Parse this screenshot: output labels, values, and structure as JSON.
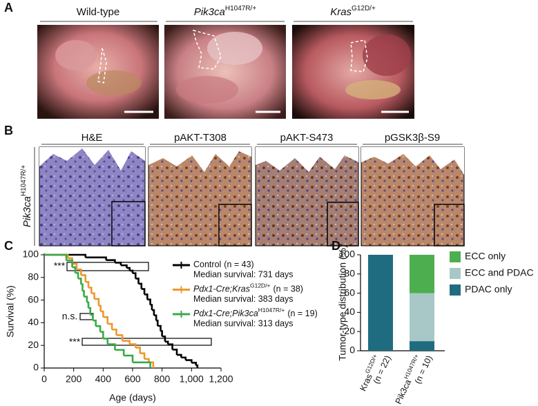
{
  "panel_a": {
    "label": "A",
    "columns": [
      {
        "title": "Wild-type"
      },
      {
        "gene": "Pik3ca",
        "allele": "H1047R/+"
      },
      {
        "gene": "Kras",
        "allele": "G12D/+"
      }
    ]
  },
  "panel_b": {
    "label": "B",
    "row_label": {
      "gene": "Pik3ca",
      "allele": "H1047R/+"
    },
    "columns": [
      "H&E",
      "pAKT-T308",
      "pAKT-S473",
      "pGSK3β-S9"
    ]
  },
  "chart_data": [
    {
      "panel_label": "C",
      "type": "line",
      "step": true,
      "x_label": "Age (days)",
      "y_label": "Survival (%)",
      "xlim": [
        0,
        1200
      ],
      "ylim": [
        0,
        100
      ],
      "xticks": [
        0,
        200,
        400,
        600,
        800,
        {
          "value": 1000,
          "label": "1,000"
        },
        {
          "value": 1200,
          "label": "1,200"
        }
      ],
      "yticks": [
        0,
        20,
        40,
        60,
        80,
        100
      ],
      "annotations": [
        "***",
        "n.s.",
        "***"
      ],
      "series": [
        {
          "name": "Control",
          "n_label": "(n = 43)",
          "median": "Median survival: 731 days",
          "color": "#000000",
          "x": [
            0,
            250,
            280,
            420,
            480,
            520,
            560,
            580,
            600,
            620,
            640,
            660,
            680,
            700,
            720,
            731,
            745,
            760,
            770,
            790,
            800,
            820,
            840,
            870,
            900,
            930,
            960,
            1000,
            1030,
            1040
          ],
          "values": [
            100,
            100,
            97.7,
            95.3,
            93,
            90.7,
            88.4,
            86,
            83.7,
            79,
            74.4,
            69.8,
            65,
            60.5,
            55.8,
            51.2,
            46.5,
            41.9,
            37.2,
            32.6,
            27.9,
            23.3,
            20.9,
            16.3,
            11.6,
            9.3,
            7,
            4.7,
            2.3,
            0
          ]
        },
        {
          "name": "Pdx1-Cre;Kras",
          "name_sup": "G12D/+",
          "n_label": "(n = 38)",
          "median": "Median survival: 383 days",
          "color": "#f0962e",
          "x": [
            0,
            150,
            160,
            190,
            220,
            250,
            280,
            300,
            320,
            340,
            370,
            383,
            400,
            430,
            460,
            490,
            530,
            580,
            620,
            650,
            680,
            710,
            740
          ],
          "values": [
            100,
            100,
            97,
            92,
            87,
            82,
            76,
            71,
            66,
            61,
            55,
            50,
            45,
            39,
            34,
            29,
            24,
            21,
            18,
            13,
            8,
            5,
            0
          ]
        },
        {
          "name": "Pdx1-Cre;Pik3ca",
          "name_sup": "H1047R/+",
          "n_label": "(n = 19)",
          "median": "Median survival: 313 days",
          "color": "#3aaa48",
          "x": [
            0,
            150,
            190,
            210,
            230,
            250,
            260,
            270,
            290,
            300,
            313,
            330,
            350,
            380,
            400,
            430,
            480,
            540,
            600,
            720
          ],
          "values": [
            100,
            95,
            89,
            84,
            79,
            74,
            68,
            63,
            58,
            53,
            47,
            42,
            37,
            32,
            26,
            21,
            16,
            11,
            5,
            0
          ]
        }
      ]
    },
    {
      "panel_label": "D",
      "type": "stacked_bar",
      "y_label": "Tumor-type distribution (%)",
      "categories": [
        "Kras",
        "Pik3ca"
      ],
      "category_sup": [
        "G12D/+",
        "H1047R/+"
      ],
      "category_n": [
        "(n = 22)",
        "(n = 10)"
      ],
      "ylim": [
        0,
        100
      ],
      "yticks": [
        0,
        20,
        40,
        60,
        80,
        100
      ],
      "series": [
        {
          "name": "PDAC only",
          "color": "#1f6c80",
          "values": [
            100,
            10
          ]
        },
        {
          "name": "ECC and PDAC",
          "color": "#a8c8c8",
          "values": [
            0,
            50
          ]
        },
        {
          "name": "ECC only",
          "color": "#4cae4f",
          "values": [
            0,
            40
          ]
        }
      ]
    }
  ]
}
